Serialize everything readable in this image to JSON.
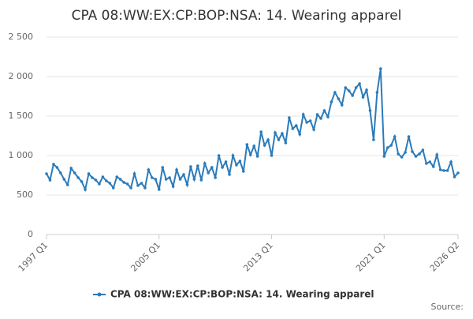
{
  "chart_data": {
    "type": "line",
    "title": "CPA 08:WW:EX:CP:BOP:NSA: 14. Wearing apparel",
    "source": "Source:",
    "categories": [
      "1997 Q1",
      null,
      null,
      null,
      null,
      null,
      null,
      null,
      null,
      null,
      null,
      null,
      null,
      null,
      null,
      null,
      null,
      null,
      null,
      null,
      null,
      null,
      null,
      null,
      null,
      null,
      null,
      null,
      null,
      null,
      null,
      null,
      "2005 Q1",
      null,
      null,
      null,
      null,
      null,
      null,
      null,
      null,
      null,
      null,
      null,
      null,
      null,
      null,
      null,
      null,
      null,
      null,
      null,
      null,
      null,
      null,
      null,
      null,
      null,
      null,
      null,
      null,
      null,
      null,
      null,
      "2013 Q1",
      null,
      null,
      null,
      null,
      null,
      null,
      null,
      null,
      null,
      null,
      null,
      null,
      null,
      null,
      null,
      null,
      null,
      null,
      null,
      null,
      null,
      null,
      null,
      null,
      null,
      null,
      null,
      null,
      null,
      null,
      null,
      "2021 Q1",
      null,
      null,
      null,
      null,
      null,
      null,
      null,
      null,
      null,
      null,
      null,
      null,
      null,
      null,
      null,
      null,
      null,
      null,
      null,
      null,
      "2026 Q2"
    ],
    "series": [
      {
        "name": "CPA 08:WW:EX:CP:BOP:NSA: 14. Wearing apparel",
        "color": "#2b7bba",
        "values": [
          770,
          690,
          890,
          850,
          780,
          700,
          630,
          840,
          780,
          720,
          670,
          570,
          770,
          720,
          690,
          640,
          730,
          680,
          650,
          590,
          730,
          700,
          660,
          640,
          590,
          770,
          620,
          650,
          590,
          820,
          720,
          700,
          570,
          850,
          700,
          720,
          610,
          820,
          700,
          760,
          630,
          860,
          700,
          870,
          690,
          900,
          780,
          850,
          720,
          1000,
          850,
          920,
          760,
          1000,
          880,
          930,
          800,
          1140,
          1010,
          1120,
          990,
          1300,
          1130,
          1200,
          1000,
          1290,
          1200,
          1280,
          1160,
          1480,
          1340,
          1380,
          1270,
          1520,
          1420,
          1440,
          1330,
          1520,
          1470,
          1570,
          1490,
          1680,
          1800,
          1720,
          1640,
          1860,
          1820,
          1760,
          1860,
          1910,
          1740,
          1830,
          1570,
          1200,
          1800,
          2100,
          990,
          1100,
          1130,
          1240,
          1020,
          980,
          1040,
          1240,
          1050,
          990,
          1020,
          1070,
          900,
          920,
          860,
          1010,
          820,
          810,
          810,
          920,
          730,
          780
        ]
      }
    ],
    "ylim": [
      0,
      2500
    ],
    "yticks": [
      0,
      500,
      {
        "value": 1000,
        "label": "1 000"
      },
      {
        "value": 1500,
        "label": "1 500"
      },
      {
        "value": 2000,
        "label": "2 000"
      },
      {
        "value": 2500,
        "label": "2 500"
      }
    ],
    "grid": true
  }
}
